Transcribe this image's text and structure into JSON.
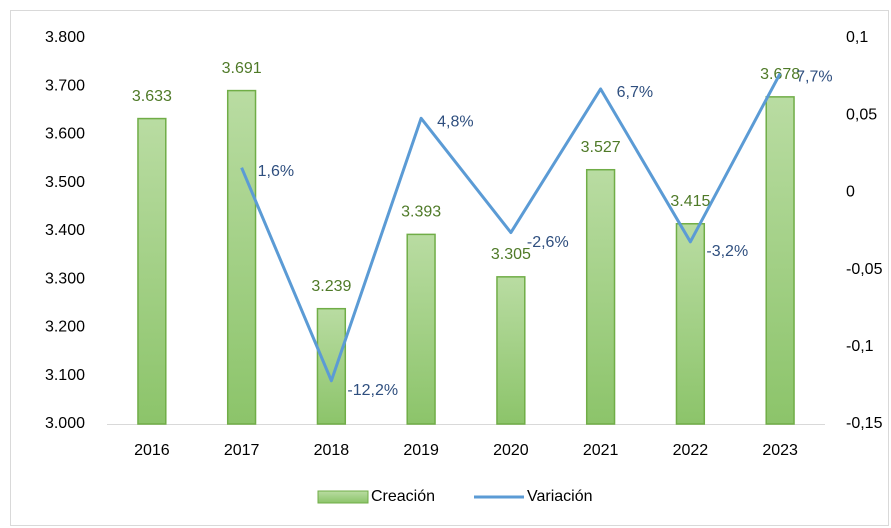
{
  "chart_data": {
    "type": "bar",
    "categories": [
      "2016",
      "2017",
      "2018",
      "2019",
      "2020",
      "2021",
      "2022",
      "2023"
    ],
    "series": [
      {
        "name": "Creación",
        "type": "bar",
        "color": "#a9d18e",
        "values": [
          3633,
          3691,
          3239,
          3393,
          3305,
          3527,
          3415,
          3678
        ],
        "value_labels": [
          "3.633",
          "3.691",
          "3.239",
          "3.393",
          "3.305",
          "3.527",
          "3.415",
          "3.678"
        ]
      },
      {
        "name": "Variación",
        "type": "line",
        "axis": "y2",
        "color": "#5b9bd5",
        "values": [
          null,
          0.016,
          -0.122,
          0.048,
          -0.026,
          0.067,
          -0.032,
          0.077
        ],
        "value_labels": [
          null,
          "1,6%",
          "-12,2%",
          "4,8%",
          "-2,6%",
          "6,7%",
          "-3,2%",
          "7,7%"
        ]
      }
    ],
    "ylim": [
      3000,
      3800
    ],
    "yticks": [
      {
        "value": 3000,
        "label": "3.000"
      },
      {
        "value": 3100,
        "label": "3.100"
      },
      {
        "value": 3200,
        "label": "3.200"
      },
      {
        "value": 3300,
        "label": "3.300"
      },
      {
        "value": 3400,
        "label": "3.400"
      },
      {
        "value": 3500,
        "label": "3.500"
      },
      {
        "value": 3600,
        "label": "3.600"
      },
      {
        "value": 3700,
        "label": "3.700"
      },
      {
        "value": 3800,
        "label": "3.800"
      }
    ],
    "y2lim": [
      -0.15,
      0.1
    ],
    "y2ticks": [
      {
        "value": -0.15,
        "label": "-0,15"
      },
      {
        "value": -0.1,
        "label": "-0,1"
      },
      {
        "value": -0.05,
        "label": "-0,05"
      },
      0,
      {
        "value": 0.05,
        "label": "0,05"
      },
      {
        "value": 0.1,
        "label": "0,1"
      }
    ],
    "grid": false,
    "legend": "bottom"
  }
}
